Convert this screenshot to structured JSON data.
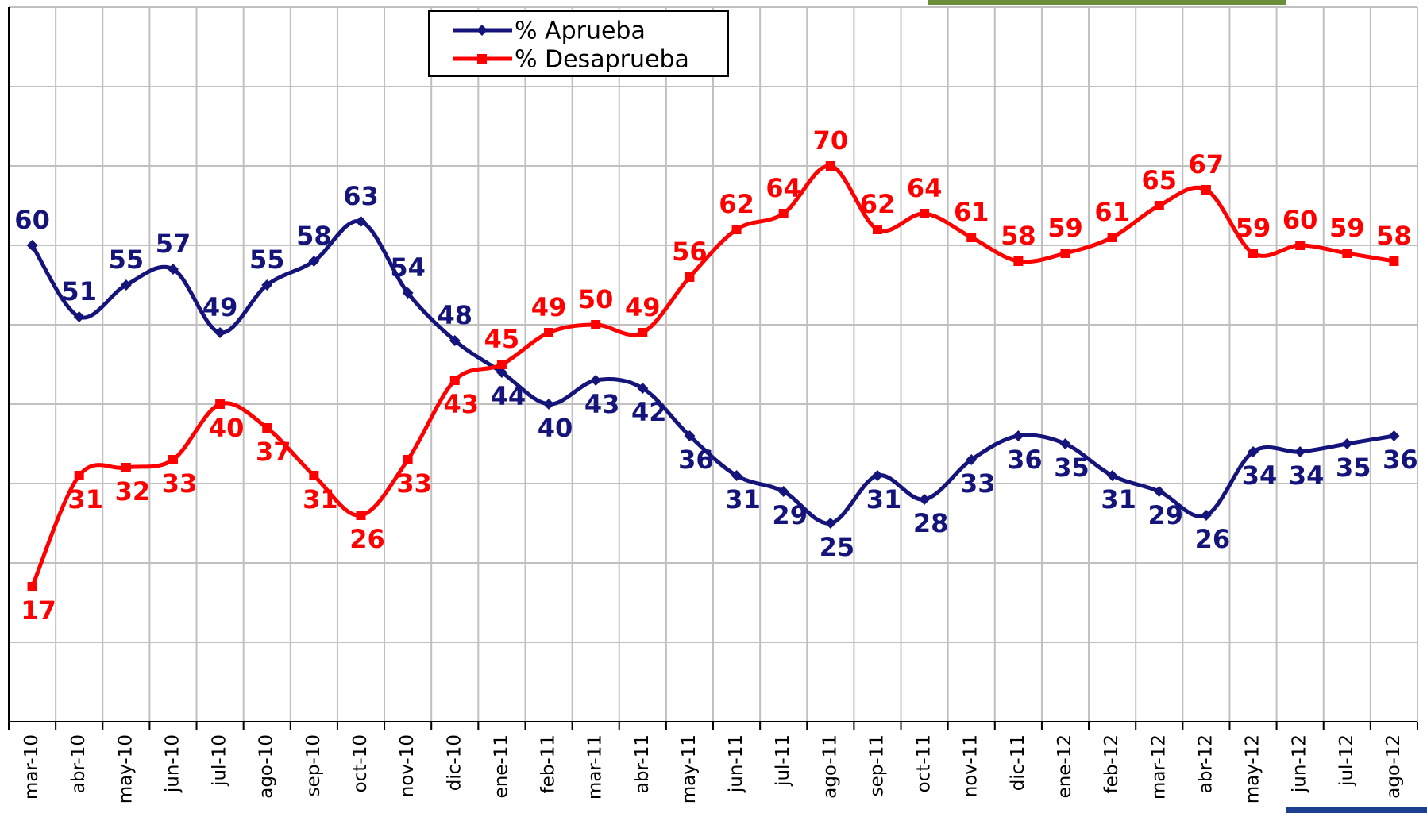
{
  "chart_data": {
    "type": "line",
    "categories": [
      "mar-10",
      "abr-10",
      "may-10",
      "jun-10",
      "jul-10",
      "ago-10",
      "sep-10",
      "oct-10",
      "nov-10",
      "dic-10",
      "ene-11",
      "feb-11",
      "mar-11",
      "abr-11",
      "may-11",
      "jun-11",
      "jul-11",
      "ago-11",
      "sep-11",
      "oct-11",
      "nov-11",
      "dic-11",
      "ene-12",
      "feb-12",
      "mar-12",
      "abr-12",
      "may-12",
      "jun-12",
      "jul-12",
      "ago-12"
    ],
    "series": [
      {
        "name": "% Aprueba",
        "color": "#14147a",
        "marker": "diamond",
        "values": [
          60,
          51,
          55,
          57,
          49,
          55,
          58,
          63,
          54,
          48,
          44,
          40,
          43,
          42,
          36,
          31,
          29,
          25,
          31,
          28,
          33,
          36,
          35,
          31,
          29,
          26,
          34,
          34,
          35,
          36
        ]
      },
      {
        "name": "% Desaprueba",
        "color": "#ff0000",
        "marker": "square",
        "values": [
          17,
          31,
          32,
          33,
          40,
          37,
          31,
          26,
          33,
          43,
          45,
          49,
          50,
          49,
          56,
          62,
          64,
          70,
          62,
          64,
          61,
          58,
          59,
          61,
          65,
          67,
          59,
          60,
          59,
          58
        ]
      }
    ],
    "ylim": [
      0,
      90
    ],
    "yticks": [
      10,
      20,
      30,
      40,
      50,
      60,
      70,
      80,
      90
    ],
    "grid": true
  }
}
